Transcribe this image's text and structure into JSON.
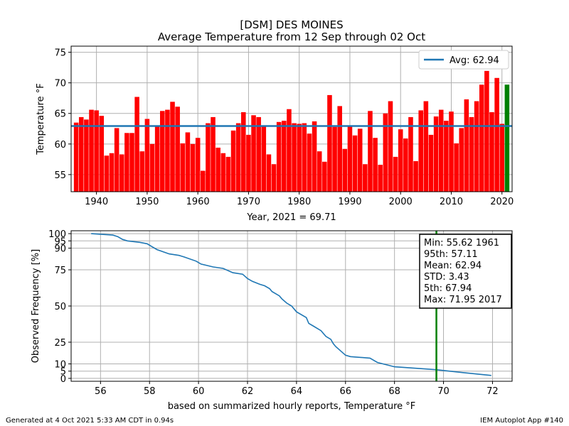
{
  "figure": {
    "title_line1": "[DSM] DES MOINES",
    "title_line2": "Average Temperature from 12 Sep through 02 Oct",
    "footer_left": "Generated at 4 Oct 2021 5:33 AM CDT in 0.94s",
    "footer_right": "IEM Autoplot App #140"
  },
  "colors": {
    "bar": "#ff0000",
    "highlight_bar": "#008000",
    "avg_line": "#1f77b4",
    "cdf_line": "#1f77b4",
    "marker_line": "#008000",
    "grid": "#b0b0b0"
  },
  "chart_data": [
    {
      "type": "bar",
      "xlabel": "Year, 2021 = 69.71",
      "ylabel": "Temperature  °F",
      "xlim": [
        1935,
        2022
      ],
      "ylim": [
        52.2,
        76
      ],
      "xticks": [
        1940,
        1950,
        1960,
        1970,
        1980,
        1990,
        2000,
        2010,
        2020
      ],
      "yticks": [
        55,
        60,
        65,
        70,
        75
      ],
      "grid": true,
      "legend": {
        "position": "top-right",
        "entry": "Avg: 62.94"
      },
      "avg": 62.94,
      "highlight_year": 2021,
      "series": [
        {
          "x": [
            1936,
            1937,
            1938,
            1939,
            1940,
            1941,
            1942,
            1943,
            1944,
            1945,
            1946,
            1947,
            1948,
            1949,
            1950,
            1951,
            1952,
            1953,
            1954,
            1955,
            1956,
            1957,
            1958,
            1959,
            1960,
            1961,
            1962,
            1963,
            1964,
            1965,
            1966,
            1967,
            1968,
            1969,
            1970,
            1971,
            1972,
            1973,
            1974,
            1975,
            1976,
            1977,
            1978,
            1979,
            1980,
            1981,
            1982,
            1983,
            1984,
            1985,
            1986,
            1987,
            1988,
            1989,
            1990,
            1991,
            1992,
            1993,
            1994,
            1995,
            1996,
            1997,
            1998,
            1999,
            2000,
            2001,
            2002,
            2003,
            2004,
            2005,
            2006,
            2007,
            2008,
            2009,
            2010,
            2011,
            2012,
            2013,
            2014,
            2015,
            2016,
            2017,
            2018,
            2019,
            2020,
            2021
          ],
          "values": [
            63.5,
            64.4,
            64.0,
            65.6,
            65.5,
            64.6,
            58.1,
            58.5,
            62.6,
            58.3,
            61.8,
            61.8,
            67.7,
            58.8,
            64.1,
            60.0,
            63.0,
            65.4,
            65.6,
            66.9,
            66.1,
            60.1,
            61.9,
            60.0,
            61.0,
            55.62,
            63.4,
            64.4,
            59.4,
            58.5,
            57.9,
            62.2,
            63.4,
            65.2,
            61.5,
            64.7,
            64.4,
            62.9,
            58.3,
            56.7,
            63.6,
            63.8,
            65.7,
            63.4,
            63.3,
            63.4,
            61.7,
            63.7,
            58.8,
            57.1,
            68.0,
            62.8,
            66.2,
            59.2,
            62.9,
            61.4,
            62.5,
            56.7,
            65.4,
            61.0,
            56.6,
            65.0,
            67.0,
            57.9,
            62.4,
            60.9,
            64.4,
            57.2,
            65.5,
            67.0,
            61.5,
            64.5,
            65.6,
            63.8,
            65.3,
            60.1,
            62.6,
            67.3,
            64.4,
            67.0,
            69.7,
            71.95,
            65.2,
            70.8,
            63.3,
            69.71
          ]
        }
      ]
    },
    {
      "type": "line",
      "xlabel": "based on summarized hourly reports, Temperature  °F",
      "ylabel": "Observed Frequency [%]",
      "xlim": [
        54.8,
        72.8
      ],
      "ylim": [
        -2,
        102
      ],
      "xticks": [
        56,
        58,
        60,
        62,
        64,
        66,
        68,
        70,
        72
      ],
      "yticks": [
        0,
        5,
        10,
        25,
        50,
        75,
        90,
        95,
        100
      ],
      "grid": true,
      "marker_x": 69.71,
      "stats": [
        "Min: 55.62 1961",
        "95th: 57.11",
        "Mean: 62.94",
        "STD: 3.43",
        "5th: 67.94",
        "Max: 71.95 2017"
      ],
      "series": [
        {
          "x": [
            55.62,
            56.5,
            56.7,
            56.9,
            57.1,
            57.6,
            57.9,
            58.1,
            58.3,
            58.8,
            59.2,
            59.4,
            59.9,
            60.0,
            60.1,
            60.6,
            61.0,
            61.4,
            61.8,
            62.0,
            62.2,
            62.5,
            62.7,
            62.9,
            63.0,
            63.3,
            63.4,
            63.6,
            63.8,
            64.0,
            64.4,
            64.5,
            64.7,
            65.0,
            65.2,
            65.4,
            65.5,
            65.6,
            65.8,
            66.0,
            66.2,
            67.0,
            67.3,
            68.0,
            69.7,
            70.8,
            71.95
          ],
          "values": [
            100,
            99,
            98,
            96,
            95,
            94,
            93,
            91,
            89,
            86,
            85,
            84,
            81,
            80,
            79,
            77,
            76,
            73,
            72,
            69,
            67,
            65,
            64,
            62,
            60,
            57,
            55,
            52,
            50,
            46,
            42,
            38,
            36,
            33,
            29,
            27,
            24,
            22,
            19,
            16,
            15,
            14,
            11,
            8,
            6,
            4,
            2
          ]
        }
      ]
    }
  ]
}
